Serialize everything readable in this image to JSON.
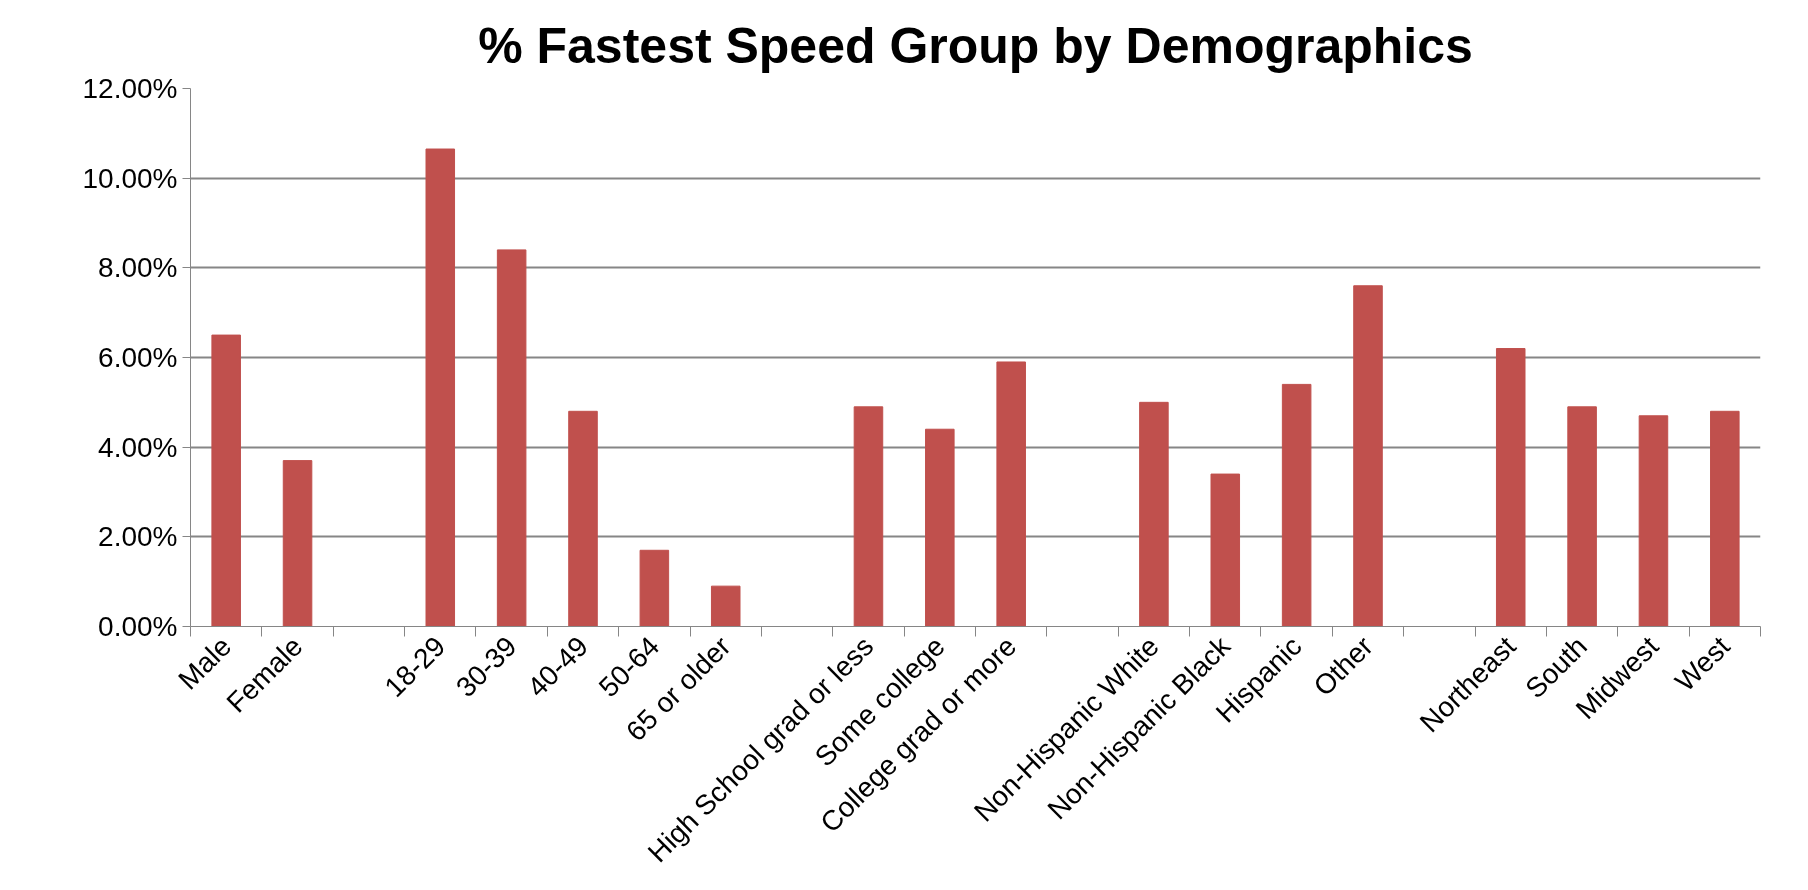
{
  "chart_data": {
    "type": "bar",
    "title": "% Fastest Speed Group by Demographics",
    "categories": [
      "Male",
      "Female",
      null,
      "18-29",
      "30-39",
      "40-49",
      "50-64",
      "65 or older",
      null,
      "High School grad or less",
      "Some college",
      "College grad or more",
      null,
      "Non-Hispanic White",
      "Non-Hispanic Black",
      "Hispanic",
      "Other",
      null,
      "Northeast",
      "South",
      "Midwest",
      "West"
    ],
    "values": [
      6.5,
      3.7,
      null,
      10.65,
      8.4,
      4.8,
      1.7,
      0.9,
      null,
      4.9,
      4.4,
      5.9,
      null,
      5.0,
      3.4,
      5.4,
      7.6,
      null,
      6.2,
      4.9,
      4.7,
      4.8
    ],
    "color": "#c0504d",
    "ylim": [
      0,
      12
    ],
    "yticks": [
      {
        "value": 0,
        "label": "0.00%"
      },
      {
        "value": 2,
        "label": "2.00%"
      },
      {
        "value": 4,
        "label": "4.00%"
      },
      {
        "value": 6,
        "label": "6.00%"
      },
      {
        "value": 8,
        "label": "8.00%"
      },
      {
        "value": 10,
        "label": "10.00%"
      },
      {
        "value": 12,
        "label": "12.00%"
      }
    ],
    "grid": "y"
  }
}
